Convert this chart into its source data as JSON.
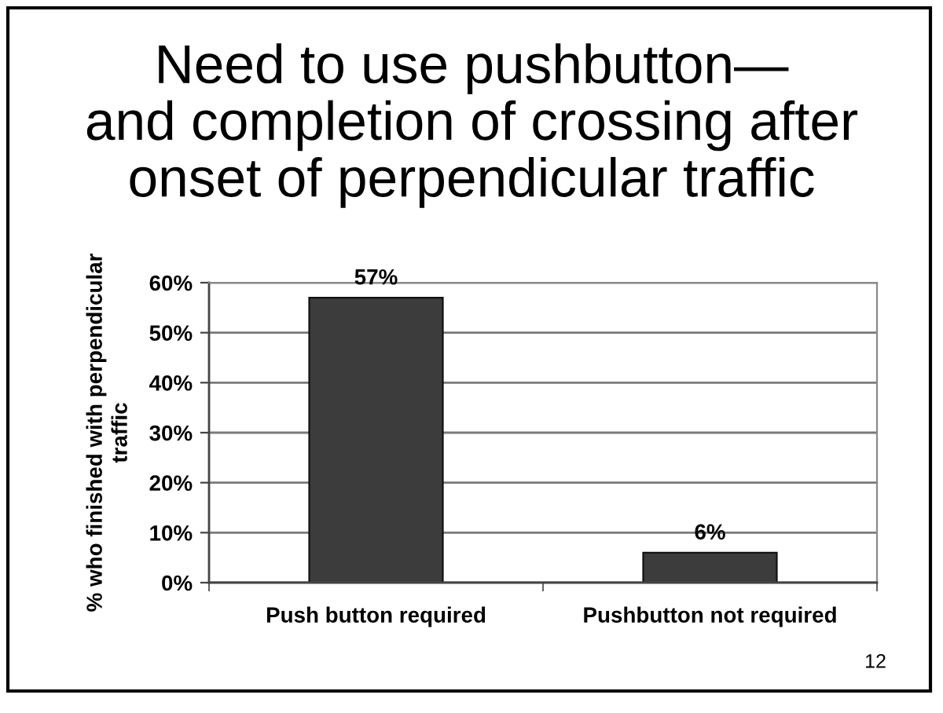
{
  "chart_data": {
    "type": "bar",
    "title": "Need to use pushbutton—\nand completion of crossing after\nonset of perpendicular traffic",
    "ylabel": "% who finished with perpendicular\ntraffic",
    "categories": [
      "Push button required",
      "Pushbutton not required"
    ],
    "values": [
      57,
      6
    ],
    "value_labels": [
      "57%",
      "6%"
    ],
    "color": "#3c3c3c",
    "ylim": [
      0,
      60
    ],
    "yticks": [
      {
        "value": 0,
        "label": "0%"
      },
      {
        "value": 10,
        "label": "10%"
      },
      {
        "value": 20,
        "label": "20%"
      },
      {
        "value": 30,
        "label": "30%"
      },
      {
        "value": 40,
        "label": "40%"
      },
      {
        "value": 50,
        "label": "50%"
      },
      {
        "value": 60,
        "label": "60%"
      }
    ],
    "grid": "y",
    "annotations": [
      "12"
    ]
  }
}
